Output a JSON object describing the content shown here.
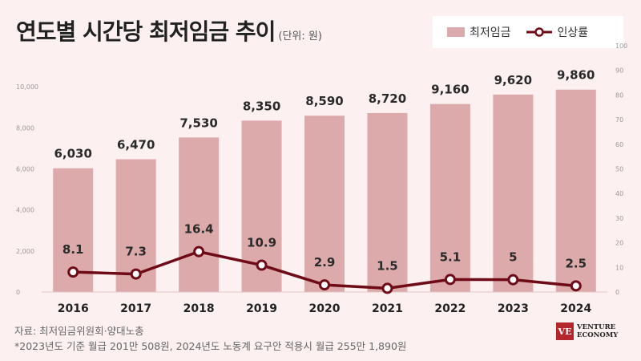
{
  "title": "연도별 시간당 최저임금 추이",
  "unit": "(단위: 원)",
  "legend": {
    "bar_label": "최저임금",
    "line_label": "인상률"
  },
  "colors": {
    "bar": "#dcaaab",
    "line": "#6e0b17",
    "background": "#fdf0f0",
    "brand": "#b3262c"
  },
  "footer": {
    "source": "자료: 최저임금위원회·양대노총",
    "note": "*2023년도 기준 월급 201만 508원, 2024년도 노동계 요구안 적용시 월급 255만 1,890원"
  },
  "brand": {
    "mark": "VE",
    "line1": "VENTURE",
    "line2": "ECONOMY"
  },
  "chart_data": {
    "type": "bar",
    "categories": [
      "2016",
      "2017",
      "2018",
      "2019",
      "2020",
      "2021",
      "2022",
      "2023",
      "2024"
    ],
    "series": [
      {
        "name": "최저임금",
        "type": "bar",
        "axis": "left",
        "values": [
          6030,
          6470,
          7530,
          8350,
          8590,
          8720,
          9160,
          9620,
          9860
        ],
        "labels": [
          "6,030",
          "6,470",
          "7,530",
          "8,350",
          "8,590",
          "8,720",
          "9,160",
          "9,620",
          "9,860"
        ]
      },
      {
        "name": "인상률",
        "type": "line",
        "axis": "right",
        "values": [
          8.1,
          7.3,
          16.4,
          10.9,
          2.9,
          1.5,
          5.1,
          5,
          2.5
        ],
        "labels": [
          "8.1",
          "7.3",
          "16.4",
          "10.9",
          "2.9",
          "1.5",
          "5.1",
          "5",
          "2.5"
        ]
      }
    ],
    "ylim_left": [
      0,
      12000
    ],
    "yticks_left": [
      "0",
      "2,000",
      "4,000",
      "6,000",
      "8,000",
      "10,000"
    ],
    "ylim_right": [
      0,
      100
    ],
    "yticks_right": [
      "0",
      "10",
      "20",
      "30",
      "40",
      "50",
      "60",
      "70",
      "80",
      "90",
      "100"
    ]
  }
}
